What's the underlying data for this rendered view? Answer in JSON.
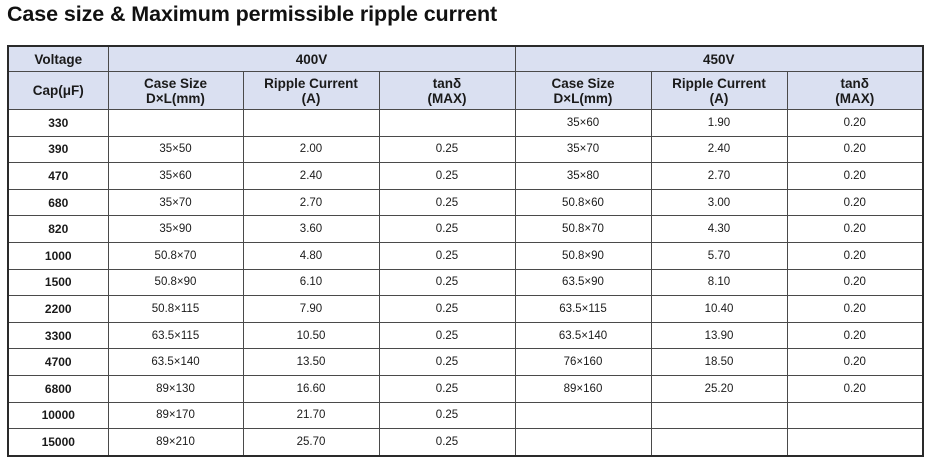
{
  "title": "Case size & Maximum permissible ripple current",
  "table": {
    "voltage_label": "Voltage",
    "cap_label": "Cap(μF)",
    "groups": [
      "400V",
      "450V"
    ],
    "subheaders": [
      {
        "line1": "Case Size",
        "line2": "D×L(mm)"
      },
      {
        "line1": "Ripple Current",
        "line2": "(A)"
      },
      {
        "line1": "tanδ",
        "line2": "(MAX)"
      },
      {
        "line1": "Case Size",
        "line2": "D×L(mm)"
      },
      {
        "line1": "Ripple Current",
        "line2": "(A)"
      },
      {
        "line1": "tanδ",
        "line2": "(MAX)"
      }
    ],
    "rows": [
      {
        "cap": "330",
        "v400": [
          "",
          "",
          ""
        ],
        "v450": [
          "35×60",
          "1.90",
          "0.20"
        ]
      },
      {
        "cap": "390",
        "v400": [
          "35×50",
          "2.00",
          "0.25"
        ],
        "v450": [
          "35×70",
          "2.40",
          "0.20"
        ]
      },
      {
        "cap": "470",
        "v400": [
          "35×60",
          "2.40",
          "0.25"
        ],
        "v450": [
          "35×80",
          "2.70",
          "0.20"
        ]
      },
      {
        "cap": "680",
        "v400": [
          "35×70",
          "2.70",
          "0.25"
        ],
        "v450": [
          "50.8×60",
          "3.00",
          "0.20"
        ]
      },
      {
        "cap": "820",
        "v400": [
          "35×90",
          "3.60",
          "0.25"
        ],
        "v450": [
          "50.8×70",
          "4.30",
          "0.20"
        ]
      },
      {
        "cap": "1000",
        "v400": [
          "50.8×70",
          "4.80",
          "0.25"
        ],
        "v450": [
          "50.8×90",
          "5.70",
          "0.20"
        ]
      },
      {
        "cap": "1500",
        "v400": [
          "50.8×90",
          "6.10",
          "0.25"
        ],
        "v450": [
          "63.5×90",
          "8.10",
          "0.20"
        ]
      },
      {
        "cap": "2200",
        "v400": [
          "50.8×115",
          "7.90",
          "0.25"
        ],
        "v450": [
          "63.5×115",
          "10.40",
          "0.20"
        ]
      },
      {
        "cap": "3300",
        "v400": [
          "63.5×115",
          "10.50",
          "0.25"
        ],
        "v450": [
          "63.5×140",
          "13.90",
          "0.20"
        ]
      },
      {
        "cap": "4700",
        "v400": [
          "63.5×140",
          "13.50",
          "0.25"
        ],
        "v450": [
          "76×160",
          "18.50",
          "0.20"
        ]
      },
      {
        "cap": "6800",
        "v400": [
          "89×130",
          "16.60",
          "0.25"
        ],
        "v450": [
          "89×160",
          "25.20",
          "0.20"
        ]
      },
      {
        "cap": "10000",
        "v400": [
          "89×170",
          "21.70",
          "0.25"
        ],
        "v450": [
          "",
          "",
          ""
        ]
      },
      {
        "cap": "15000",
        "v400": [
          "89×210",
          "25.70",
          "0.25"
        ],
        "v450": [
          "",
          "",
          ""
        ]
      }
    ]
  }
}
